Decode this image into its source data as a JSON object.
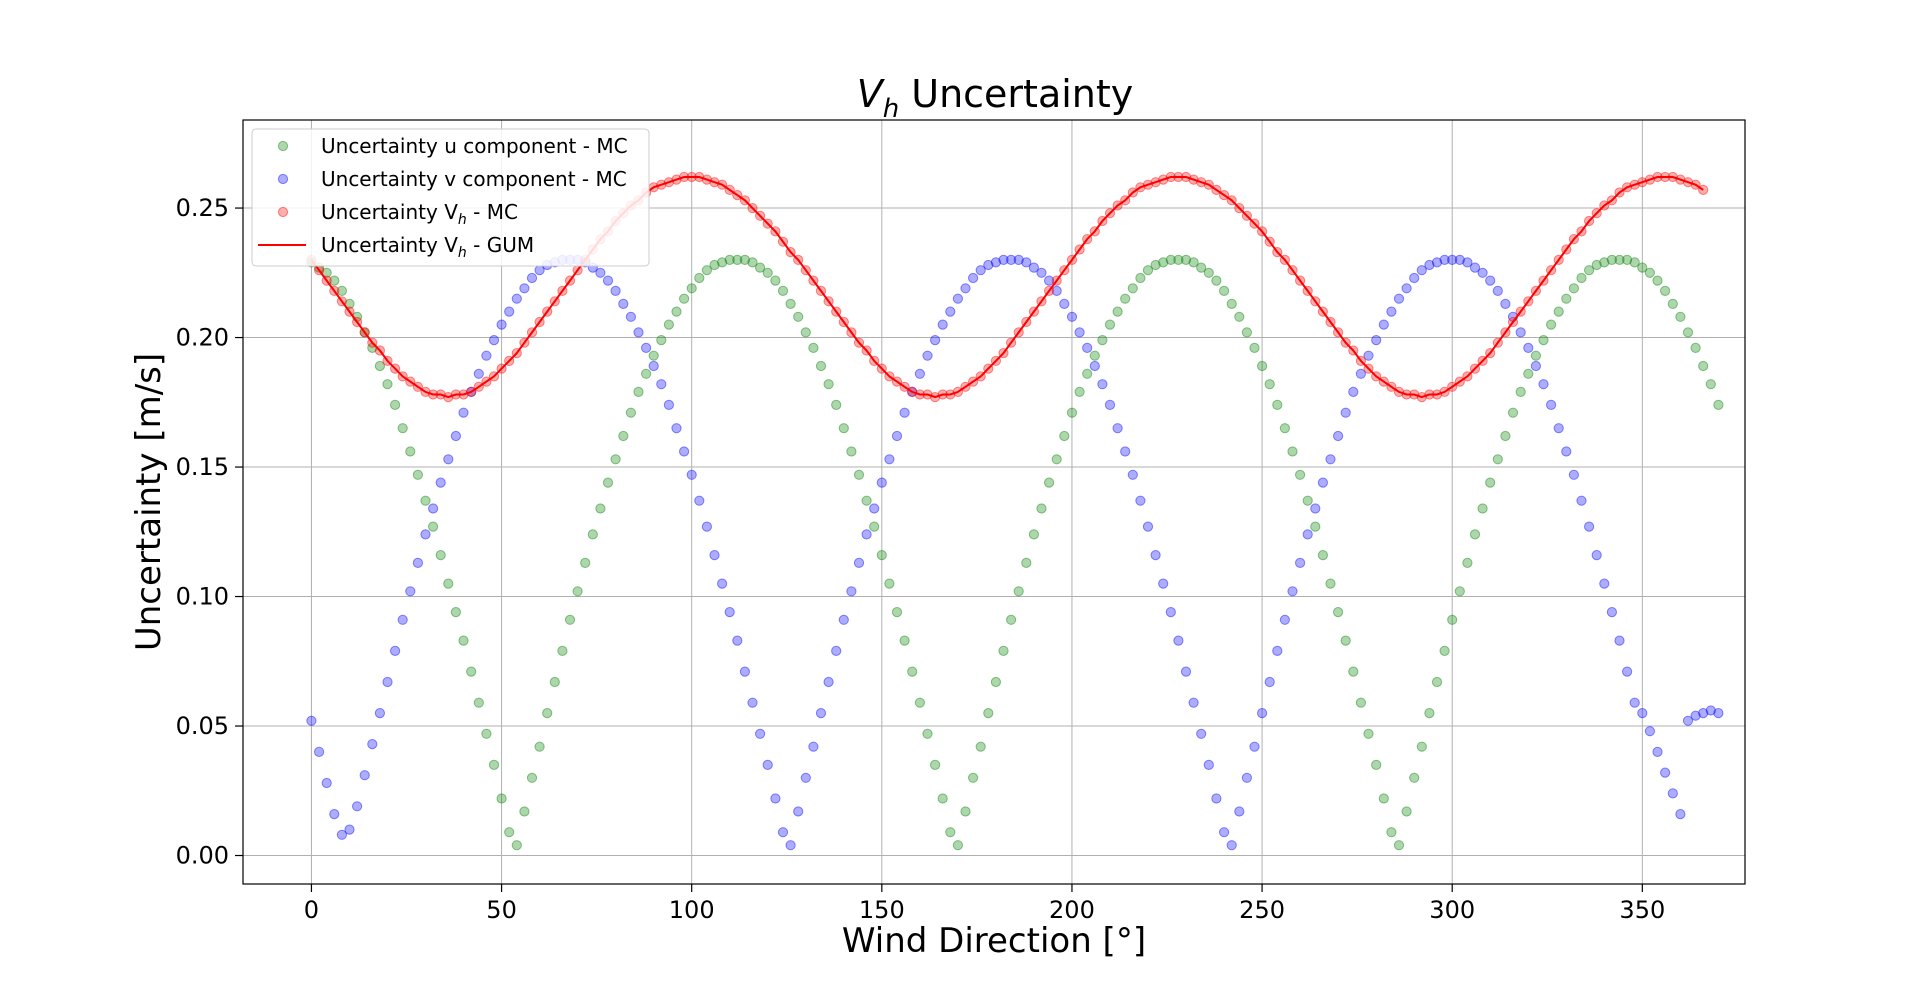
{
  "chart_data": {
    "type": "scatter",
    "title": {
      "main": "V",
      "sub": "h",
      "rest": " Uncertainty"
    },
    "xlabel": "Wind Direction [°]",
    "ylabel": "Uncertainty [m/s]",
    "xlim": [
      -18,
      377
    ],
    "ylim": [
      -0.011,
      0.284
    ],
    "xticks": [
      0,
      50,
      100,
      150,
      200,
      250,
      300,
      350
    ],
    "xtick_labels": [
      "0",
      "50",
      "100",
      "150",
      "200",
      "250",
      "300",
      "350"
    ],
    "yticks": [
      0.0,
      0.05,
      0.1,
      0.15,
      0.2,
      0.25
    ],
    "ytick_labels": [
      "0.00",
      "0.05",
      "0.10",
      "0.15",
      "0.20",
      "0.25"
    ],
    "grid": true,
    "legend_position": "top-left",
    "x_step": 2,
    "x_count": 180,
    "series": [
      {
        "name": "Uncertainty u component - MC",
        "legend": {
          "prefix": "Uncertainty u component - MC",
          "sub": "",
          "suffix": ""
        },
        "kind": "scatter",
        "color": "#008000",
        "values": [
          0.229,
          0.227,
          0.225,
          0.222,
          0.218,
          0.213,
          0.208,
          0.202,
          0.196,
          0.189,
          0.182,
          0.174,
          0.165,
          0.156,
          0.147,
          0.137,
          0.127,
          0.116,
          0.105,
          0.094,
          0.083,
          0.071,
          0.059,
          0.047,
          0.035,
          0.022,
          0.009,
          0.004,
          0.017,
          0.03,
          0.042,
          0.055,
          0.067,
          0.079,
          0.091,
          0.102,
          0.113,
          0.124,
          0.134,
          0.144,
          0.153,
          0.162,
          0.171,
          0.179,
          0.186,
          0.193,
          0.199,
          0.205,
          0.21,
          0.215,
          0.219,
          0.223,
          0.226,
          0.228,
          0.229,
          0.23,
          0.23,
          0.23,
          0.229,
          0.227,
          0.225,
          0.222,
          0.218,
          0.213,
          0.208,
          0.202,
          0.196,
          0.189,
          0.182,
          0.174,
          0.165,
          0.156,
          0.147,
          0.137,
          0.127,
          0.116,
          0.105,
          0.094,
          0.083,
          0.071,
          0.059,
          0.047,
          0.035,
          0.022,
          0.009,
          0.004,
          0.017,
          0.03,
          0.042,
          0.055,
          0.067,
          0.079,
          0.091,
          0.102,
          0.113,
          0.124,
          0.134,
          0.144,
          0.153,
          0.162,
          0.171,
          0.179,
          0.186,
          0.193,
          0.199,
          0.205,
          0.21,
          0.215,
          0.219,
          0.223,
          0.226,
          0.228,
          0.229,
          0.23,
          0.23,
          0.23,
          0.229,
          0.227,
          0.225,
          0.222,
          0.218,
          0.213,
          0.208,
          0.202,
          0.196,
          0.189,
          0.182,
          0.174,
          0.165,
          0.156,
          0.147,
          0.137,
          0.127,
          0.116,
          0.105,
          0.094,
          0.083,
          0.071,
          0.059,
          0.047,
          0.035,
          0.022,
          0.009,
          0.004,
          0.017,
          0.03,
          0.042,
          0.055,
          0.067,
          0.079,
          0.091,
          0.102,
          0.113,
          0.124,
          0.134,
          0.144,
          0.153,
          0.162,
          0.171,
          0.179,
          0.186,
          0.193,
          0.199,
          0.205,
          0.21,
          0.215,
          0.219,
          0.223,
          0.226,
          0.228,
          0.229,
          0.23,
          0.23,
          0.23,
          0.229,
          0.227,
          0.225,
          0.222,
          0.218,
          0.213,
          0.208,
          0.202,
          0.196,
          0.189,
          0.182,
          0.174
        ]
      },
      {
        "name": "Uncertainty v component - MC",
        "legend": {
          "prefix": "Uncertainty v component - MC",
          "sub": "",
          "suffix": ""
        },
        "kind": "scatter",
        "color": "#0000ff",
        "values": [
          0.052,
          0.04,
          0.028,
          0.016,
          0.008,
          0.01,
          0.019,
          0.031,
          0.043,
          0.055,
          0.067,
          0.079,
          0.091,
          0.102,
          0.113,
          0.124,
          0.134,
          0.144,
          0.153,
          0.162,
          0.171,
          0.179,
          0.186,
          0.193,
          0.199,
          0.205,
          0.21,
          0.215,
          0.219,
          0.223,
          0.226,
          0.228,
          0.229,
          0.23,
          0.23,
          0.23,
          0.229,
          0.227,
          0.225,
          0.222,
          0.218,
          0.213,
          0.208,
          0.202,
          0.196,
          0.189,
          0.182,
          0.174,
          0.165,
          0.156,
          0.147,
          0.137,
          0.127,
          0.116,
          0.105,
          0.094,
          0.083,
          0.071,
          0.059,
          0.047,
          0.035,
          0.022,
          0.009,
          0.004,
          0.017,
          0.03,
          0.042,
          0.055,
          0.067,
          0.079,
          0.091,
          0.102,
          0.113,
          0.124,
          0.134,
          0.144,
          0.153,
          0.162,
          0.171,
          0.179,
          0.186,
          0.193,
          0.199,
          0.205,
          0.21,
          0.215,
          0.219,
          0.223,
          0.226,
          0.228,
          0.229,
          0.23,
          0.23,
          0.23,
          0.229,
          0.227,
          0.225,
          0.222,
          0.218,
          0.213,
          0.208,
          0.202,
          0.196,
          0.189,
          0.182,
          0.174,
          0.165,
          0.156,
          0.147,
          0.137,
          0.127,
          0.116,
          0.105,
          0.094,
          0.083,
          0.071,
          0.059,
          0.047,
          0.035,
          0.022,
          0.009,
          0.004,
          0.017,
          0.03,
          0.042,
          0.055,
          0.067,
          0.079,
          0.091,
          0.102,
          0.113,
          0.124,
          0.134,
          0.144,
          0.153,
          0.162,
          0.171,
          0.179,
          0.186,
          0.193,
          0.199,
          0.205,
          0.21,
          0.215,
          0.219,
          0.223,
          0.226,
          0.228,
          0.229,
          0.23,
          0.23,
          0.23,
          0.229,
          0.227,
          0.225,
          0.222,
          0.218,
          0.213,
          0.208,
          0.202,
          0.196,
          0.189,
          0.182,
          0.174,
          0.165,
          0.156,
          0.147,
          0.137,
          0.127,
          0.116,
          0.105,
          0.094,
          0.083,
          0.071,
          0.059,
          0.055,
          0.048,
          0.04,
          0.032,
          0.024,
          0.016,
          0.052,
          0.054,
          0.055,
          0.056,
          0.055
        ]
      },
      {
        "name": "Uncertainty Vh - MC",
        "legend": {
          "prefix": "Uncertainty V",
          "sub": "h",
          "suffix": " - MC"
        },
        "kind": "scatter",
        "color": "#ff0000",
        "values": [
          0.23,
          0.226,
          0.222,
          0.218,
          0.214,
          0.21,
          0.206,
          0.202,
          0.198,
          0.195,
          0.191,
          0.188,
          0.185,
          0.183,
          0.181,
          0.179,
          0.178,
          0.178,
          0.177,
          0.178,
          0.178,
          0.179,
          0.181,
          0.183,
          0.185,
          0.188,
          0.191,
          0.194,
          0.198,
          0.202,
          0.206,
          0.21,
          0.214,
          0.218,
          0.222,
          0.226,
          0.23,
          0.234,
          0.238,
          0.241,
          0.245,
          0.248,
          0.251,
          0.253,
          0.256,
          0.258,
          0.259,
          0.26,
          0.261,
          0.262,
          0.262,
          0.262,
          0.261,
          0.26,
          0.259,
          0.257,
          0.255,
          0.253,
          0.25,
          0.247,
          0.244,
          0.241,
          0.237,
          0.233,
          0.23,
          0.226,
          0.222,
          0.218,
          0.214,
          0.21,
          0.206,
          0.202,
          0.198,
          0.195,
          0.191,
          0.188,
          0.185,
          0.183,
          0.181,
          0.179,
          0.178,
          0.178,
          0.177,
          0.178,
          0.178,
          0.179,
          0.181,
          0.183,
          0.185,
          0.188,
          0.191,
          0.194,
          0.198,
          0.202,
          0.206,
          0.21,
          0.214,
          0.218,
          0.222,
          0.226,
          0.23,
          0.234,
          0.238,
          0.241,
          0.245,
          0.248,
          0.251,
          0.253,
          0.256,
          0.258,
          0.259,
          0.26,
          0.261,
          0.262,
          0.262,
          0.262,
          0.261,
          0.26,
          0.259,
          0.257,
          0.255,
          0.253,
          0.25,
          0.247,
          0.244,
          0.241,
          0.237,
          0.233,
          0.23,
          0.226,
          0.222,
          0.218,
          0.214,
          0.21,
          0.206,
          0.202,
          0.198,
          0.195,
          0.191,
          0.188,
          0.185,
          0.183,
          0.181,
          0.179,
          0.178,
          0.178,
          0.177,
          0.178,
          0.178,
          0.179,
          0.181,
          0.183,
          0.185,
          0.188,
          0.191,
          0.194,
          0.198,
          0.202,
          0.206,
          0.21,
          0.214,
          0.218,
          0.222,
          0.226,
          0.23,
          0.234,
          0.238,
          0.241,
          0.245,
          0.248,
          0.251,
          0.253,
          0.256,
          0.258,
          0.259,
          0.26,
          0.261,
          0.262,
          0.262,
          0.262,
          0.261,
          0.26,
          0.259,
          0.257
        ]
      },
      {
        "name": "Uncertainty Vh - GUM",
        "legend": {
          "prefix": "Uncertainty V",
          "sub": "h",
          "suffix": " - GUM"
        },
        "kind": "line",
        "color": "#ff0000",
        "values": [
          0.23,
          0.226,
          0.222,
          0.218,
          0.214,
          0.21,
          0.206,
          0.202,
          0.198,
          0.195,
          0.191,
          0.188,
          0.185,
          0.183,
          0.181,
          0.179,
          0.178,
          0.178,
          0.177,
          0.178,
          0.178,
          0.179,
          0.181,
          0.183,
          0.185,
          0.188,
          0.191,
          0.194,
          0.198,
          0.202,
          0.206,
          0.21,
          0.214,
          0.218,
          0.222,
          0.226,
          0.23,
          0.234,
          0.238,
          0.241,
          0.245,
          0.248,
          0.251,
          0.253,
          0.256,
          0.258,
          0.259,
          0.26,
          0.261,
          0.262,
          0.262,
          0.262,
          0.261,
          0.26,
          0.259,
          0.257,
          0.255,
          0.253,
          0.25,
          0.247,
          0.244,
          0.241,
          0.237,
          0.233,
          0.23,
          0.226,
          0.222,
          0.218,
          0.214,
          0.21,
          0.206,
          0.202,
          0.198,
          0.195,
          0.191,
          0.188,
          0.185,
          0.183,
          0.181,
          0.179,
          0.178,
          0.178,
          0.177,
          0.178,
          0.178,
          0.179,
          0.181,
          0.183,
          0.185,
          0.188,
          0.191,
          0.194,
          0.198,
          0.202,
          0.206,
          0.21,
          0.214,
          0.218,
          0.222,
          0.226,
          0.23,
          0.234,
          0.238,
          0.241,
          0.245,
          0.248,
          0.251,
          0.253,
          0.256,
          0.258,
          0.259,
          0.26,
          0.261,
          0.262,
          0.262,
          0.262,
          0.261,
          0.26,
          0.259,
          0.257,
          0.255,
          0.253,
          0.25,
          0.247,
          0.244,
          0.241,
          0.237,
          0.233,
          0.23,
          0.226,
          0.222,
          0.218,
          0.214,
          0.21,
          0.206,
          0.202,
          0.198,
          0.195,
          0.191,
          0.188,
          0.185,
          0.183,
          0.181,
          0.179,
          0.178,
          0.178,
          0.177,
          0.178,
          0.178,
          0.179,
          0.181,
          0.183,
          0.185,
          0.188,
          0.191,
          0.194,
          0.198,
          0.202,
          0.206,
          0.21,
          0.214,
          0.218,
          0.222,
          0.226,
          0.23,
          0.234,
          0.238,
          0.241,
          0.245,
          0.248,
          0.251,
          0.253,
          0.256,
          0.258,
          0.259,
          0.26,
          0.261,
          0.262,
          0.262,
          0.262,
          0.261,
          0.26,
          0.259,
          0.257
        ]
      }
    ]
  }
}
